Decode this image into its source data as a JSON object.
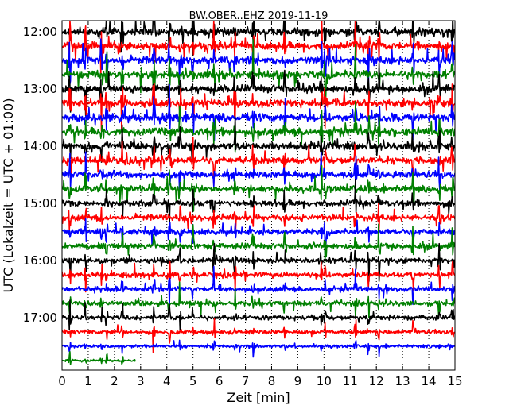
{
  "chart_data": {
    "type": "line",
    "title": "BW.OBER..EHZ 2019-11-19",
    "xlabel": "Zeit  [min]",
    "ylabel": "UTC (Lokalzeit = UTC + 01:00)",
    "xlim": [
      0,
      15
    ],
    "x_ticks": [
      0,
      1,
      2,
      3,
      4,
      5,
      6,
      7,
      8,
      9,
      10,
      11,
      12,
      13,
      14,
      15
    ],
    "x_tick_labels": [
      "0",
      "1",
      "2",
      "3",
      "4",
      "5",
      "6",
      "7",
      "8",
      "9",
      "10",
      "11",
      "12",
      "13",
      "14",
      "15"
    ],
    "y_ticks": [
      "12:00",
      "13:00",
      "14:00",
      "15:00",
      "16:00",
      "17:00"
    ],
    "grid": "vertical dotted",
    "colors": [
      "#000000",
      "#ff0000",
      "#0000ff",
      "#008000"
    ],
    "traces": [
      {
        "start": "12:00",
        "color": "#000000",
        "minutes": 15,
        "amplitude": 1.0
      },
      {
        "start": "12:15",
        "color": "#ff0000",
        "minutes": 15,
        "amplitude": 1.0
      },
      {
        "start": "12:30",
        "color": "#0000ff",
        "minutes": 15,
        "amplitude": 1.0
      },
      {
        "start": "12:45",
        "color": "#008000",
        "minutes": 15,
        "amplitude": 1.0
      },
      {
        "start": "13:00",
        "color": "#000000",
        "minutes": 15,
        "amplitude": 1.0
      },
      {
        "start": "13:15",
        "color": "#ff0000",
        "minutes": 15,
        "amplitude": 1.0
      },
      {
        "start": "13:30",
        "color": "#0000ff",
        "minutes": 15,
        "amplitude": 1.0
      },
      {
        "start": "13:45",
        "color": "#008000",
        "minutes": 15,
        "amplitude": 1.0
      },
      {
        "start": "14:00",
        "color": "#000000",
        "minutes": 15,
        "amplitude": 0.9
      },
      {
        "start": "14:15",
        "color": "#ff0000",
        "minutes": 15,
        "amplitude": 0.9
      },
      {
        "start": "14:30",
        "color": "#0000ff",
        "minutes": 15,
        "amplitude": 0.85
      },
      {
        "start": "14:45",
        "color": "#008000",
        "minutes": 15,
        "amplitude": 0.85
      },
      {
        "start": "15:00",
        "color": "#000000",
        "minutes": 15,
        "amplitude": 0.8
      },
      {
        "start": "15:15",
        "color": "#ff0000",
        "minutes": 15,
        "amplitude": 0.8
      },
      {
        "start": "15:30",
        "color": "#0000ff",
        "minutes": 15,
        "amplitude": 0.75
      },
      {
        "start": "15:45",
        "color": "#008000",
        "minutes": 15,
        "amplitude": 0.75
      },
      {
        "start": "16:00",
        "color": "#000000",
        "minutes": 15,
        "amplitude": 0.7
      },
      {
        "start": "16:15",
        "color": "#ff0000",
        "minutes": 15,
        "amplitude": 0.7
      },
      {
        "start": "16:30",
        "color": "#0000ff",
        "minutes": 15,
        "amplitude": 0.65
      },
      {
        "start": "16:45",
        "color": "#008000",
        "minutes": 15,
        "amplitude": 0.65
      },
      {
        "start": "17:00",
        "color": "#000000",
        "minutes": 15,
        "amplitude": 0.6
      },
      {
        "start": "17:15",
        "color": "#ff0000",
        "minutes": 15,
        "amplitude": 0.55
      },
      {
        "start": "17:30",
        "color": "#0000ff",
        "minutes": 15,
        "amplitude": 0.4
      },
      {
        "start": "17:45",
        "color": "#008000",
        "minutes": 2.8,
        "amplitude": 0.3
      }
    ]
  }
}
